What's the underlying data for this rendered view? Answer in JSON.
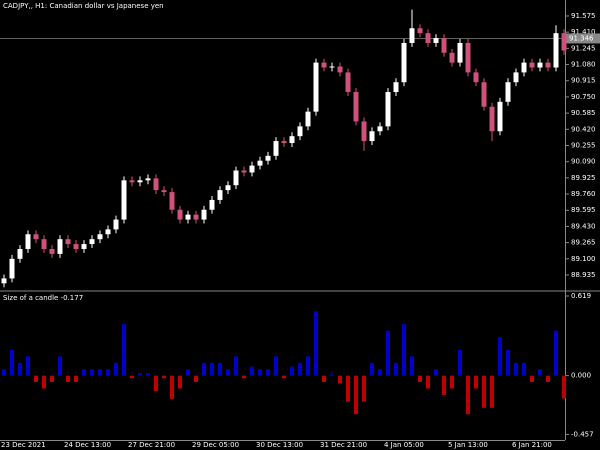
{
  "chart_data": [
    {
      "type": "candlestick",
      "title": "CADJPY,, H1:  Canadian dollar vs Japanese yen",
      "categories": [
        "23 Dec 2021",
        null,
        null,
        null,
        null,
        null,
        null,
        null,
        "24 Dec 13:00",
        null,
        null,
        null,
        null,
        null,
        null,
        null,
        "27 Dec 21:00",
        null,
        null,
        null,
        null,
        null,
        null,
        null,
        "29 Dec 05:00",
        null,
        null,
        null,
        null,
        null,
        null,
        null,
        "30 Dec 13:00",
        null,
        null,
        null,
        null,
        null,
        null,
        null,
        "31 Dec 21:00",
        null,
        null,
        null,
        null,
        null,
        null,
        null,
        "4 Jan 05:00",
        null,
        null,
        null,
        null,
        null,
        null,
        null,
        "5 Jan 13:00",
        null,
        null,
        null,
        null,
        null,
        null,
        null,
        "6 Jan 21:00",
        null,
        null,
        null,
        null,
        null,
        null
      ],
      "open": [
        88.85,
        88.9,
        89.1,
        89.2,
        89.35,
        89.3,
        89.2,
        89.15,
        89.3,
        89.25,
        89.2,
        89.25,
        89.3,
        89.35,
        89.4,
        89.5,
        89.9,
        89.88,
        89.9,
        89.92,
        89.8,
        89.78,
        89.6,
        89.5,
        89.55,
        89.5,
        89.6,
        89.7,
        89.8,
        89.85,
        90.0,
        89.98,
        90.05,
        90.1,
        90.15,
        90.3,
        90.28,
        90.35,
        90.45,
        90.6,
        91.1,
        91.05,
        91.06,
        91.0,
        90.8,
        90.5,
        90.3,
        90.4,
        90.45,
        90.8,
        90.9,
        91.3,
        91.45,
        91.4,
        91.3,
        91.35,
        91.2,
        91.1,
        91.3,
        91.0,
        90.9,
        90.65,
        90.4,
        90.7,
        90.9,
        91.0,
        91.1,
        91.05,
        91.1,
        91.05,
        91.4
      ],
      "high": [
        88.94,
        89.14,
        89.24,
        89.39,
        89.39,
        89.34,
        89.24,
        89.34,
        89.34,
        89.29,
        89.29,
        89.34,
        89.39,
        89.44,
        89.54,
        89.94,
        89.94,
        89.94,
        89.96,
        89.96,
        89.84,
        89.82,
        89.64,
        89.59,
        89.59,
        89.64,
        89.74,
        89.84,
        89.89,
        90.04,
        90.04,
        90.09,
        90.14,
        90.19,
        90.34,
        90.34,
        90.39,
        90.49,
        90.64,
        91.14,
        91.14,
        91.1,
        91.1,
        91.04,
        90.84,
        90.54,
        90.44,
        90.49,
        90.84,
        90.94,
        91.34,
        91.64,
        91.49,
        91.44,
        91.39,
        91.39,
        91.24,
        91.34,
        91.34,
        91.04,
        90.94,
        90.69,
        90.74,
        90.94,
        91.04,
        91.14,
        91.14,
        91.14,
        91.14,
        91.48,
        91.44
      ],
      "low": [
        88.81,
        88.86,
        89.06,
        89.16,
        89.26,
        89.16,
        89.11,
        89.11,
        89.21,
        89.16,
        89.16,
        89.21,
        89.26,
        89.31,
        89.36,
        89.46,
        89.84,
        89.84,
        89.86,
        89.76,
        89.74,
        89.56,
        89.46,
        89.46,
        89.46,
        89.46,
        89.56,
        89.66,
        89.76,
        89.81,
        89.94,
        89.94,
        90.01,
        90.06,
        90.11,
        90.24,
        90.24,
        90.31,
        90.41,
        90.56,
        91.01,
        91.01,
        90.96,
        90.76,
        90.46,
        90.2,
        90.26,
        90.36,
        90.41,
        90.76,
        90.86,
        91.26,
        91.36,
        91.26,
        91.26,
        91.16,
        91.06,
        91.06,
        90.96,
        90.86,
        90.61,
        90.3,
        90.36,
        90.66,
        90.86,
        90.96,
        91.01,
        91.01,
        91.01,
        91.01,
        91.18
      ],
      "close": [
        88.9,
        89.1,
        89.2,
        89.35,
        89.3,
        89.2,
        89.15,
        89.3,
        89.25,
        89.2,
        89.25,
        89.3,
        89.35,
        89.4,
        89.5,
        89.9,
        89.88,
        89.9,
        89.92,
        89.8,
        89.78,
        89.6,
        89.5,
        89.55,
        89.5,
        89.6,
        89.7,
        89.8,
        89.85,
        90.0,
        89.98,
        90.05,
        90.1,
        90.15,
        90.3,
        90.28,
        90.35,
        90.45,
        90.6,
        91.1,
        91.05,
        91.06,
        91.0,
        90.8,
        90.5,
        90.3,
        90.4,
        90.45,
        90.8,
        90.9,
        91.3,
        91.45,
        91.4,
        91.3,
        91.35,
        91.2,
        91.1,
        91.3,
        91.0,
        90.9,
        90.65,
        90.4,
        90.7,
        90.9,
        91.0,
        91.1,
        91.05,
        91.1,
        91.05,
        91.4,
        91.223
      ],
      "up_color": "#ffffff",
      "down_color": "#d0507e",
      "current_price": 91.346,
      "ylim": [
        88.782,
        91.738
      ],
      "yticks": [
        88.935,
        {
          "value": 89.1,
          "label": "89.100"
        },
        89.265,
        {
          "value": 89.43,
          "label": "89.430"
        },
        89.595,
        {
          "value": 89.76,
          "label": "89.760"
        },
        89.925,
        {
          "value": 90.09,
          "label": "90.090"
        },
        90.255,
        {
          "value": 90.42,
          "label": "90.420"
        },
        90.585,
        {
          "value": 90.75,
          "label": "90.750"
        },
        90.915,
        {
          "value": 91.08,
          "label": "91.080"
        },
        91.245,
        {
          "value": 91.41,
          "label": "91.410"
        },
        91.575
      ]
    },
    {
      "type": "bar",
      "title": "Size of a candle -0.177",
      "values": [
        0.05,
        0.2,
        0.1,
        0.15,
        -0.05,
        -0.1,
        -0.05,
        0.15,
        -0.05,
        -0.05,
        0.05,
        0.05,
        0.05,
        0.05,
        0.1,
        0.4,
        -0.02,
        0.02,
        0.02,
        -0.12,
        -0.02,
        -0.18,
        -0.1,
        0.05,
        -0.05,
        0.1,
        0.1,
        0.1,
        0.05,
        0.15,
        -0.02,
        0.07,
        0.05,
        0.05,
        0.15,
        -0.02,
        0.07,
        0.1,
        0.15,
        0.5,
        -0.05,
        0.01,
        -0.06,
        -0.2,
        -0.3,
        -0.2,
        0.1,
        0.05,
        0.35,
        0.1,
        0.4,
        0.15,
        -0.05,
        -0.1,
        0.05,
        -0.15,
        -0.1,
        0.2,
        -0.3,
        -0.1,
        -0.25,
        -0.25,
        0.3,
        0.2,
        0.1,
        0.1,
        -0.05,
        0.05,
        -0.05,
        0.35,
        -0.177
      ],
      "up_color": "#0000c8",
      "down_color": "#c00000",
      "ylim": [
        -0.5,
        0.65
      ],
      "yticks": [
        0.619,
        {
          "value": 0,
          "label": "0.000"
        },
        -0.457
      ]
    }
  ]
}
